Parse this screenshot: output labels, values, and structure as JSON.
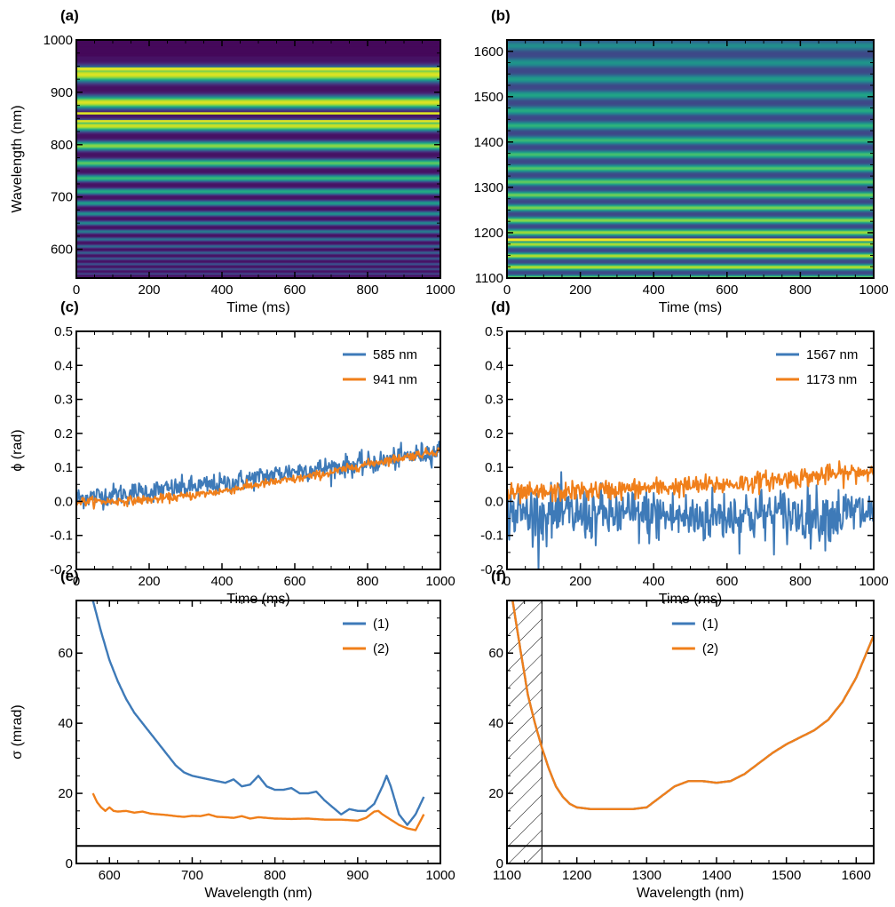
{
  "chart_data": [
    {
      "panel": "(a)",
      "type": "heatmap",
      "xlabel": "Time (ms)",
      "ylabel": "Wavelength (nm)",
      "xlim": [
        0,
        1000
      ],
      "ylim": [
        545,
        1000
      ],
      "xticks": [
        0,
        200,
        400,
        600,
        800,
        1000
      ],
      "yticks": [
        600,
        700,
        800,
        900,
        1000
      ],
      "colormap": "viridis",
      "data_range_y": [
        545,
        968
      ],
      "description_values": {
        "fringes": "horizontal bands constant in time",
        "brightest_near_nm": [
          945,
          920,
          860,
          840
        ]
      }
    },
    {
      "panel": "(b)",
      "type": "heatmap",
      "xlabel": "Time (ms)",
      "ylabel": "",
      "xlim": [
        0,
        1000
      ],
      "ylim": [
        1100,
        1625
      ],
      "xticks": [
        0,
        200,
        400,
        600,
        800,
        1000
      ],
      "yticks": [
        1100,
        1200,
        1300,
        1400,
        1500,
        1600
      ],
      "colormap": "viridis",
      "description_values": {
        "fringes": "horizontal bands constant in time",
        "brightest_near_nm": [
          1185,
          1165
        ]
      }
    },
    {
      "panel": "(c)",
      "type": "line",
      "xlabel": "Time (ms)",
      "ylabel": "ϕ (rad)",
      "xlim": [
        0,
        1000
      ],
      "ylim": [
        -0.2,
        0.5
      ],
      "xticks": [
        0,
        200,
        400,
        600,
        800,
        1000
      ],
      "yticks": [
        -0.2,
        -0.1,
        0.0,
        0.1,
        0.2,
        0.3,
        0.4,
        0.5
      ],
      "legend_position": "top-right",
      "series": [
        {
          "name": "585 nm",
          "color": "#3e7ab8",
          "x": [
            0,
            100,
            200,
            300,
            400,
            500,
            600,
            700,
            800,
            900,
            1000
          ],
          "y": [
            0.01,
            0.02,
            0.03,
            0.04,
            0.05,
            0.07,
            0.09,
            0.1,
            0.11,
            0.13,
            0.15
          ],
          "noise": 0.02
        },
        {
          "name": "941 nm",
          "color": "#f07f1a",
          "x": [
            0,
            100,
            200,
            300,
            400,
            500,
            600,
            700,
            800,
            900,
            1000
          ],
          "y": [
            0.0,
            0.0,
            0.005,
            0.015,
            0.03,
            0.05,
            0.065,
            0.085,
            0.11,
            0.13,
            0.15
          ],
          "noise": 0.008
        }
      ]
    },
    {
      "panel": "(d)",
      "type": "line",
      "xlabel": "Time (ms)",
      "ylabel": "",
      "xlim": [
        0,
        1000
      ],
      "ylim": [
        -0.2,
        0.5
      ],
      "xticks": [
        0,
        200,
        400,
        600,
        800,
        1000
      ],
      "yticks": [
        -0.2,
        -0.1,
        0.0,
        0.1,
        0.2,
        0.3,
        0.4,
        0.5
      ],
      "legend_position": "top-right",
      "series": [
        {
          "name": "1567 nm",
          "color": "#3e7ab8",
          "x": [
            0,
            100,
            200,
            300,
            400,
            500,
            600,
            700,
            800,
            900,
            1000
          ],
          "y": [
            -0.03,
            -0.04,
            -0.04,
            -0.04,
            -0.04,
            -0.05,
            -0.04,
            -0.04,
            -0.04,
            -0.04,
            -0.03
          ],
          "noise": 0.05
        },
        {
          "name": "1173 nm",
          "color": "#f07f1a",
          "x": [
            0,
            100,
            200,
            300,
            400,
            500,
            600,
            700,
            800,
            900,
            1000
          ],
          "y": [
            0.02,
            0.025,
            0.03,
            0.035,
            0.04,
            0.045,
            0.05,
            0.06,
            0.07,
            0.08,
            0.09
          ],
          "noise": 0.018
        }
      ]
    },
    {
      "panel": "(e)",
      "type": "line",
      "xlabel": "Wavelength (nm)",
      "ylabel": "σ (mrad)",
      "xlim": [
        560,
        1000
      ],
      "ylim": [
        0,
        75
      ],
      "xticks": [
        600,
        700,
        800,
        900,
        1000
      ],
      "yticks": [
        0,
        20,
        40,
        60
      ],
      "hline": 5,
      "legend_position": "top-right",
      "series": [
        {
          "name": "(1)",
          "color": "#3e7ab8",
          "x": [
            580,
            590,
            600,
            610,
            620,
            630,
            640,
            650,
            660,
            670,
            680,
            690,
            700,
            710,
            720,
            730,
            740,
            750,
            760,
            770,
            780,
            790,
            800,
            810,
            820,
            830,
            840,
            850,
            860,
            870,
            880,
            890,
            900,
            910,
            920,
            930,
            935,
            940,
            950,
            960,
            970,
            980
          ],
          "y": [
            75,
            66,
            58,
            52,
            47,
            43,
            40,
            37,
            34,
            31,
            28,
            26,
            25,
            24.5,
            24,
            23.5,
            23,
            24,
            22,
            22.5,
            25,
            22,
            21,
            21,
            21.5,
            20,
            20,
            20.5,
            18,
            16,
            14,
            15.5,
            15,
            15,
            17,
            22,
            25,
            22,
            14,
            11,
            14,
            19
          ]
        },
        {
          "name": "(2)",
          "color": "#f07f1a",
          "x": [
            580,
            585,
            590,
            595,
            600,
            605,
            610,
            620,
            630,
            640,
            650,
            660,
            670,
            680,
            690,
            700,
            710,
            720,
            730,
            740,
            750,
            760,
            770,
            780,
            790,
            800,
            820,
            840,
            860,
            880,
            900,
            910,
            920,
            925,
            930,
            940,
            950,
            960,
            970,
            980
          ],
          "y": [
            20,
            17.5,
            16,
            15,
            16,
            15,
            14.8,
            15,
            14.5,
            14.8,
            14.2,
            14,
            13.8,
            13.5,
            13.3,
            13.6,
            13.5,
            14,
            13.3,
            13.2,
            13,
            13.5,
            12.8,
            13.2,
            13,
            12.8,
            12.7,
            12.8,
            12.5,
            12.5,
            12.2,
            13,
            14.8,
            15,
            14,
            12.5,
            11,
            10,
            9.5,
            14
          ]
        }
      ]
    },
    {
      "panel": "(f)",
      "type": "line",
      "xlabel": "Wavelength (nm)",
      "ylabel": "",
      "xlim": [
        1100,
        1625
      ],
      "ylim": [
        0,
        75
      ],
      "xticks": [
        1100,
        1200,
        1300,
        1400,
        1500,
        1600
      ],
      "yticks": [
        0,
        20,
        40,
        60
      ],
      "hline": 5,
      "hatched_region_x": [
        1100,
        1150
      ],
      "legend_position": "top-center",
      "series": [
        {
          "name": "(1)",
          "color": "#3e7ab8",
          "x": [
            1108,
            1120,
            1130,
            1140,
            1150,
            1160,
            1170,
            1180,
            1190,
            1200,
            1220,
            1240,
            1260,
            1280,
            1300,
            1320,
            1340,
            1360,
            1380,
            1400,
            1420,
            1440,
            1460,
            1480,
            1500,
            1520,
            1540,
            1560,
            1580,
            1600,
            1625
          ],
          "y": [
            75,
            60,
            48,
            40,
            33,
            27,
            22,
            19,
            17,
            16,
            15.5,
            15.5,
            15.5,
            15.5,
            16,
            19,
            22,
            23.5,
            23.5,
            23,
            23.5,
            25.5,
            28.5,
            31.5,
            34,
            36,
            38,
            41,
            46,
            53,
            65
          ]
        },
        {
          "name": "(2)",
          "color": "#f07f1a",
          "x": [
            1108,
            1120,
            1130,
            1140,
            1150,
            1160,
            1170,
            1180,
            1190,
            1200,
            1220,
            1240,
            1260,
            1280,
            1300,
            1320,
            1340,
            1360,
            1380,
            1400,
            1420,
            1440,
            1460,
            1480,
            1500,
            1520,
            1540,
            1560,
            1580,
            1600,
            1625
          ],
          "y": [
            75,
            60,
            48,
            40,
            33,
            27,
            22,
            19,
            17,
            16,
            15.5,
            15.5,
            15.5,
            15.5,
            16,
            19,
            22,
            23.5,
            23.5,
            23,
            23.5,
            25.5,
            28.5,
            31.5,
            34,
            36,
            38,
            41,
            46,
            53,
            65
          ]
        }
      ]
    }
  ]
}
